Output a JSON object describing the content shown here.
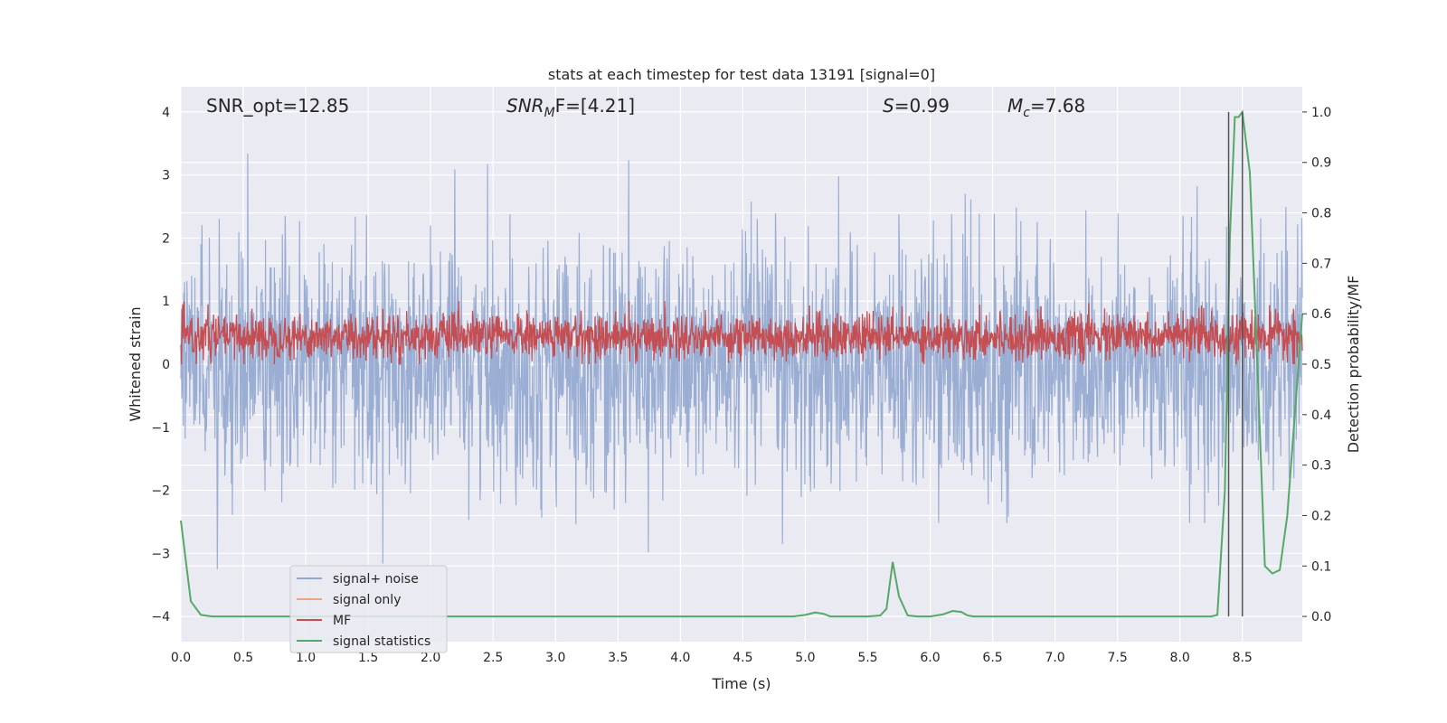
{
  "chart_data": {
    "type": "line",
    "title": "stats at each timestep for test data 13191 [signal=0]",
    "xlabel": "Time (s)",
    "ylabel_left": "Whitened strain",
    "ylabel_right": "Detection probability/MF",
    "xlim": [
      0.0,
      8.98
    ],
    "ylim_left": [
      -4.4,
      4.4
    ],
    "ylim_right": [
      -0.05,
      1.05
    ],
    "x_ticks": [
      "0.0",
      "0.5",
      "1.0",
      "1.5",
      "2.0",
      "2.5",
      "3.0",
      "3.5",
      "4.0",
      "4.5",
      "5.0",
      "5.5",
      "6.0",
      "6.5",
      "7.0",
      "7.5",
      "8.0",
      "8.5"
    ],
    "y_left_ticks": [
      "−4",
      "−3",
      "−2",
      "−1",
      "0",
      "1",
      "2",
      "3",
      "4"
    ],
    "y_right_ticks": [
      "0.0",
      "0.1",
      "0.2",
      "0.3",
      "0.4",
      "0.5",
      "0.6",
      "0.7",
      "0.8",
      "0.9",
      "1.0"
    ],
    "annotations": {
      "snr_opt": "SNR_opt=12.85",
      "snr_mf_main": "SNR",
      "snr_mf_sub": "M",
      "snr_mf_rest": "F=[4.21]",
      "s_main": "S",
      "s_rest": "=0.99",
      "mc_main": "M",
      "mc_sub": "c",
      "mc_rest": "=7.68"
    },
    "legend": {
      "position": "lower-left",
      "entries": [
        {
          "label": "signal+ noise",
          "color": "#91a6cf"
        },
        {
          "label": "signal only",
          "color": "#e8a58c"
        },
        {
          "label": "MF",
          "color": "#c44e52"
        },
        {
          "label": "signal statistics",
          "color": "#55a868"
        }
      ]
    },
    "series": [
      {
        "name": "signal+ noise",
        "axis": "left",
        "color": "#91a6cf",
        "style": "dense noise band, roughly -2 to 2, extremes -3.4 to 4.0"
      },
      {
        "name": "signal only",
        "axis": "left",
        "color": "#e8a58c",
        "values": "flat at 0 (not visible)"
      },
      {
        "name": "MF",
        "axis": "right",
        "color": "#c44e52",
        "style": "dense noise band, roughly 0.50 to 0.62"
      },
      {
        "name": "signal statistics",
        "axis": "right",
        "color": "#55a868",
        "x": [
          0.0,
          0.08,
          0.16,
          0.25,
          0.5,
          1.0,
          2.0,
          3.0,
          4.0,
          4.9,
          5.0,
          5.08,
          5.15,
          5.2,
          5.5,
          5.6,
          5.65,
          5.7,
          5.75,
          5.82,
          5.9,
          6.0,
          6.1,
          6.18,
          6.25,
          6.3,
          6.35,
          7.0,
          8.0,
          8.25,
          8.3,
          8.36,
          8.4,
          8.44,
          8.47,
          8.5,
          8.56,
          8.62,
          8.68,
          8.74,
          8.8,
          8.86,
          8.92,
          8.98
        ],
        "values": [
          0.19,
          0.03,
          0.003,
          0.0,
          0.0,
          0.0,
          0.0,
          0.0,
          0.0,
          0.0,
          0.003,
          0.008,
          0.005,
          0.0,
          0.0,
          0.002,
          0.015,
          0.108,
          0.04,
          0.002,
          0.0,
          0.0,
          0.004,
          0.011,
          0.009,
          0.002,
          0.0,
          0.0,
          0.0,
          0.0,
          0.003,
          0.25,
          0.75,
          0.99,
          0.99,
          1.0,
          0.88,
          0.5,
          0.1,
          0.085,
          0.092,
          0.2,
          0.4,
          0.6
        ]
      }
    ],
    "vlines": [
      8.39,
      8.5
    ],
    "vline_color": "#555555"
  }
}
